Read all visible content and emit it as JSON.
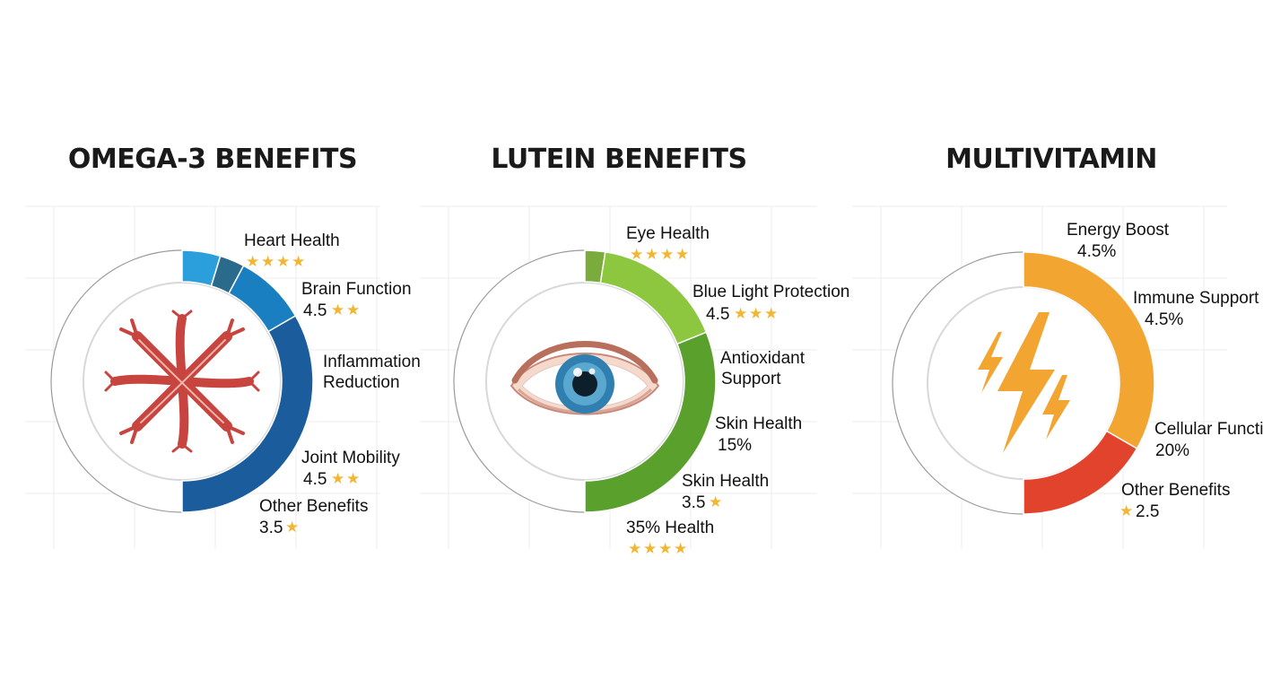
{
  "chart_data": [
    {
      "type": "pie",
      "variant": "donut",
      "title": "OMEGA-3 BENEFITS",
      "center_icon": "blood-vessels-icon",
      "segments": [
        {
          "label": "Heart Health",
          "rating": null,
          "stars": 4,
          "start_deg": 0,
          "end_deg": 17,
          "color": "#2b9fdc"
        },
        {
          "label": "",
          "rating": null,
          "stars": 0,
          "start_deg": 17,
          "end_deg": 28,
          "color": "#2a6a8a"
        },
        {
          "label": "Brain Function",
          "rating": "4.5",
          "stars": 2,
          "start_deg": 28,
          "end_deg": 60,
          "color": "#1a7fc1"
        },
        {
          "label": "Inflammation Reduction",
          "rating": null,
          "stars": 0,
          "start_deg": 60,
          "end_deg": 180,
          "color": "#1a5c9c"
        }
      ],
      "labels": [
        {
          "lines": [
            "Heart Health"
          ],
          "stars": 4
        },
        {
          "lines": [
            "Brain Function",
            "4.5"
          ],
          "stars": 2
        },
        {
          "lines": [
            "Inflammation",
            "Reduction"
          ],
          "stars": 0
        },
        {
          "lines": [
            "Joint Mobility",
            "4.5"
          ],
          "stars": 2
        },
        {
          "lines": [
            "Other Benefits",
            "3.5"
          ],
          "stars": 1
        }
      ]
    },
    {
      "type": "pie",
      "variant": "donut",
      "title": "LUTEIN BENEFITS",
      "center_icon": "eye-icon",
      "segments": [
        {
          "label": "Eye Health",
          "start_deg": 0,
          "end_deg": 9,
          "color": "#7aab3c"
        },
        {
          "label": "Blue Light Protection",
          "start_deg": 9,
          "end_deg": 68,
          "color": "#8dc63f"
        },
        {
          "label": "Antioxidant Support",
          "start_deg": 68,
          "end_deg": 180,
          "color": "#5aa02c"
        }
      ],
      "labels": [
        {
          "lines": [
            "Eye Health"
          ],
          "stars": 4
        },
        {
          "lines": [
            "Blue Light Protection",
            "4.5"
          ],
          "stars": 3
        },
        {
          "lines": [
            "Antioxidant",
            "Support"
          ],
          "stars": 0
        },
        {
          "lines": [
            "Skin Health",
            "15%"
          ],
          "stars": 0
        },
        {
          "lines": [
            "Skin Health",
            "3.5"
          ],
          "stars": 1
        },
        {
          "lines": [
            "35% Health"
          ],
          "stars": 4
        }
      ]
    },
    {
      "type": "pie",
      "variant": "donut",
      "title": "MULTIVITAMIN",
      "center_icon": "lightning-bolt-icon",
      "segments": [
        {
          "label": "Immune Support",
          "start_deg": 0,
          "end_deg": 120,
          "color": "#f2a531"
        },
        {
          "label": "Cellular Function",
          "start_deg": 120,
          "end_deg": 180,
          "color": "#e2432d"
        }
      ],
      "labels": [
        {
          "lines": [
            "Energy Boost",
            "4.5%"
          ],
          "stars": 0
        },
        {
          "lines": [
            "Immune Support",
            "4.5%"
          ],
          "stars": 0
        },
        {
          "lines": [
            "Cellular Functi",
            "20%"
          ],
          "stars": 0
        },
        {
          "lines": [
            "Other Benefits",
            "2.5"
          ],
          "stars": 1,
          "star_first": true
        }
      ]
    }
  ],
  "colors": {
    "ring_outline": "#9a9a9a",
    "inner_ring": "#d8d8d8",
    "star": "#f2b632",
    "vessel": "#c8453f",
    "bolt": "#f2a531"
  }
}
